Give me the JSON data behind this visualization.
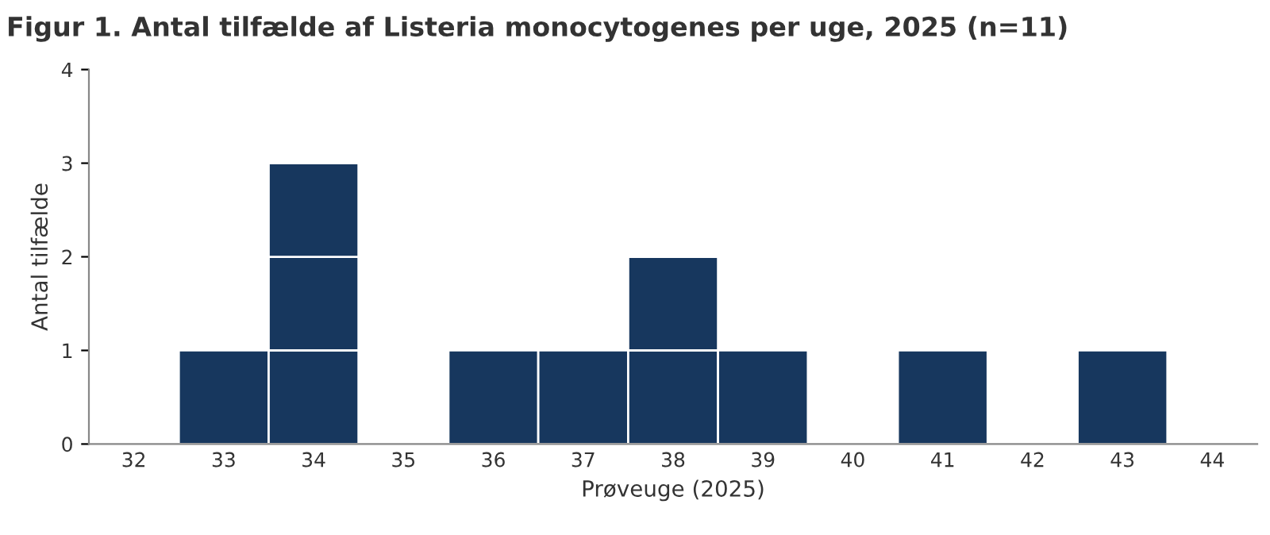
{
  "chart_data": {
    "type": "bar",
    "title": "Figur 1. Antal tilfælde af Listeria monocytogenes per uge, 2025 (n=11)",
    "xlabel": "Prøveuge (2025)",
    "ylabel": "Antal tilfælde",
    "categories": [
      "32",
      "33",
      "34",
      "35",
      "36",
      "37",
      "38",
      "39",
      "40",
      "41",
      "42",
      "43",
      "44"
    ],
    "stacked": true,
    "series": [
      {
        "color": "#17375e",
        "values": [
          null,
          1,
          1,
          null,
          1,
          1,
          1,
          1,
          null,
          1,
          null,
          1,
          null
        ]
      },
      {
        "color": "#17375e",
        "values": [
          null,
          null,
          1,
          null,
          null,
          null,
          1,
          null,
          null,
          null,
          null,
          null,
          null
        ]
      },
      {
        "color": "#17375e",
        "values": [
          null,
          null,
          1,
          null,
          null,
          null,
          null,
          null,
          null,
          null,
          null,
          null,
          null
        ]
      }
    ],
    "ylim": [
      0,
      4
    ],
    "yticks": [
      0,
      1,
      2,
      3,
      4
    ],
    "grid": false,
    "legend": false
  }
}
